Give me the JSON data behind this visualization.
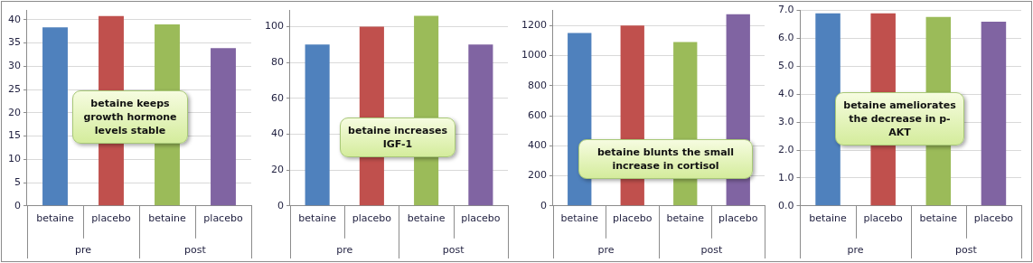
{
  "chart_data": [
    {
      "type": "bar",
      "categories": [
        "betaine",
        "placebo",
        "betaine",
        "placebo"
      ],
      "values": [
        38.4,
        40.8,
        39.0,
        33.9
      ],
      "colors": [
        "#4f81bd",
        "#c0504d",
        "#9bbb59",
        "#8064a2"
      ],
      "ylim": [
        0,
        42
      ],
      "yticks": [
        0,
        5,
        10,
        15,
        20,
        25,
        30,
        35,
        40
      ],
      "grid": "y",
      "annotations": [
        "pre",
        "post",
        "betaine keeps growth hormone levels stable"
      ]
    },
    {
      "type": "bar",
      "categories": [
        "betaine",
        "placebo",
        "betaine",
        "placebo"
      ],
      "values": [
        90,
        100,
        106,
        90
      ],
      "colors": [
        "#4f81bd",
        "#c0504d",
        "#9bbb59",
        "#8064a2"
      ],
      "ylim": [
        0,
        109
      ],
      "yticks": [
        0,
        20,
        40,
        60,
        80,
        100
      ],
      "grid": "y",
      "annotations": [
        "pre",
        "post",
        "betaine increases IGF-1"
      ]
    },
    {
      "type": "bar",
      "categories": [
        "betaine",
        "placebo",
        "betaine",
        "placebo"
      ],
      "values": [
        1150,
        1200,
        1090,
        1275
      ],
      "colors": [
        "#4f81bd",
        "#c0504d",
        "#9bbb59",
        "#8064a2"
      ],
      "ylim": [
        0,
        1300
      ],
      "yticks": [
        0,
        200,
        400,
        600,
        800,
        1000,
        1200
      ],
      "grid": "y",
      "annotations": [
        "pre",
        "post",
        "betaine blunts the small increase in cortisol"
      ]
    },
    {
      "type": "bar",
      "categories": [
        "betaine",
        "placebo",
        "betaine",
        "placebo"
      ],
      "values": [
        6.9,
        6.9,
        6.77,
        6.6
      ],
      "colors": [
        "#4f81bd",
        "#c0504d",
        "#9bbb59",
        "#8064a2"
      ],
      "ylim": [
        0,
        7
      ],
      "yticks": [
        {
          "value": 0,
          "label": "0.0"
        },
        {
          "value": 1,
          "label": "1.0"
        },
        {
          "value": 2,
          "label": "2.0"
        },
        {
          "value": 3,
          "label": "3.0"
        },
        {
          "value": 4,
          "label": "4.0"
        },
        {
          "value": 5,
          "label": "5.0"
        },
        {
          "value": 6,
          "label": "6.0"
        },
        {
          "value": 7,
          "label": "7.0"
        }
      ],
      "grid": "y",
      "annotations": [
        "pre",
        "post",
        "betaine ameliorates the decrease in p-AKT"
      ]
    }
  ]
}
